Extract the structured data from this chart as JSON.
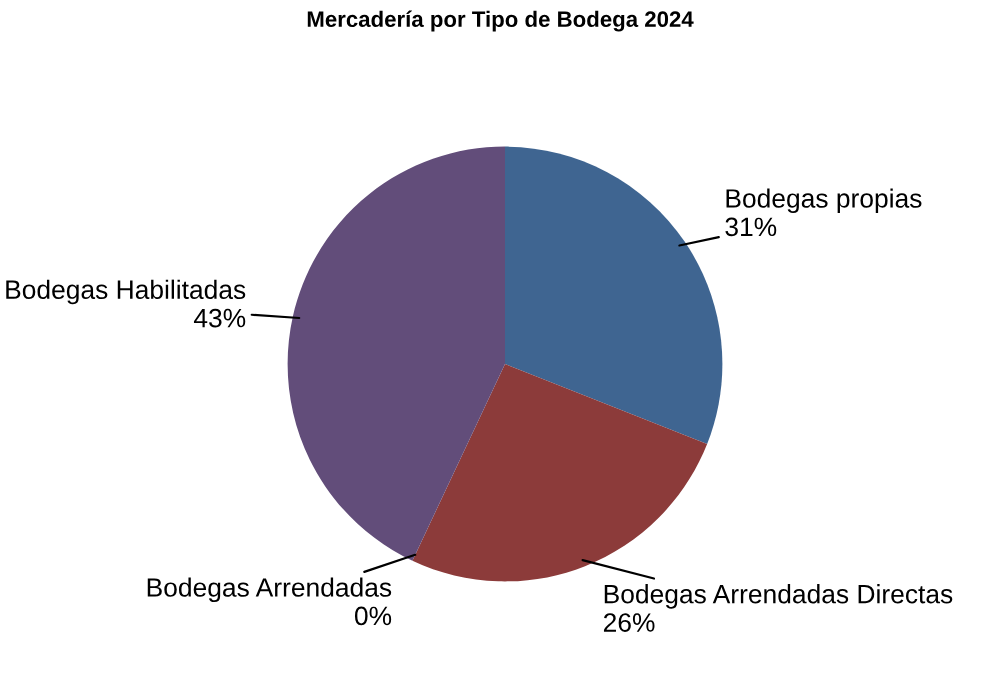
{
  "chart_data": {
    "type": "pie",
    "title": "Mercadería por Tipo de Bodega 2024",
    "categories": [
      "Bodegas propias",
      "Bodegas Arrendadas Directas",
      "Bodegas Arrendadas",
      "Bodegas Habilitadas"
    ],
    "values": [
      31,
      26,
      0,
      43
    ],
    "value_labels": [
      "31%",
      "26%",
      "0%",
      "43%"
    ],
    "colors": [
      "#3f6591",
      "#8c3b3a",
      "#6a8a3a",
      "#624d7a"
    ]
  }
}
